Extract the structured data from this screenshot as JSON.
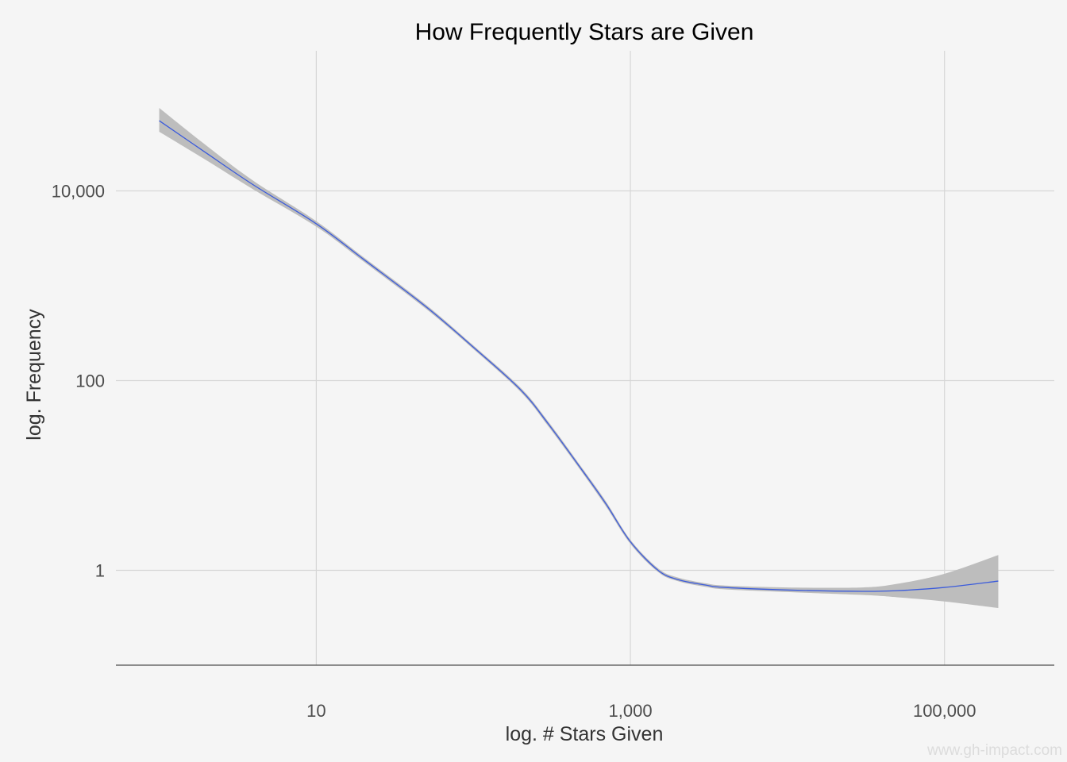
{
  "chart_data": {
    "type": "line",
    "title": "How Frequently Stars are Given",
    "xlabel": "log. # Stars Given",
    "ylabel": "log. Frequency",
    "x_scale": "log10",
    "y_scale": "log10",
    "xlim": [
      0.53,
      500000
    ],
    "ylim": [
      0.1,
      300000
    ],
    "x_ticks": [
      {
        "value": 10,
        "label": "10"
      },
      {
        "value": 1000,
        "label": "1,000"
      },
      {
        "value": 100000,
        "label": "100,000"
      }
    ],
    "y_ticks": [
      {
        "value": 1,
        "label": "1"
      },
      {
        "value": 100,
        "label": "100"
      },
      {
        "value": 10000,
        "label": "10,000"
      }
    ],
    "grid": true,
    "legend": "none",
    "series": [
      {
        "color": "#3b5bdb",
        "band_color": "#bdbdbd",
        "points": [
          {
            "x": 1,
            "y": 55000,
            "lo": 42000,
            "hi": 75000
          },
          {
            "x": 2,
            "y": 25000,
            "lo": 21000,
            "hi": 30000
          },
          {
            "x": 4,
            "y": 11500,
            "lo": 10300,
            "hi": 12700
          },
          {
            "x": 10,
            "y": 4500,
            "lo": 4200,
            "hi": 4800
          },
          {
            "x": 20,
            "y": 1900,
            "lo": 1800,
            "hi": 2000
          },
          {
            "x": 50,
            "y": 600,
            "lo": 570,
            "hi": 630
          },
          {
            "x": 100,
            "y": 225,
            "lo": 215,
            "hi": 235
          },
          {
            "x": 200,
            "y": 80,
            "lo": 76,
            "hi": 84
          },
          {
            "x": 300,
            "y": 35,
            "lo": 33,
            "hi": 37
          },
          {
            "x": 500,
            "y": 11,
            "lo": 10.4,
            "hi": 11.6
          },
          {
            "x": 700,
            "y": 5,
            "lo": 4.7,
            "hi": 5.3
          },
          {
            "x": 1000,
            "y": 2.0,
            "lo": 1.9,
            "hi": 2.1
          },
          {
            "x": 1500,
            "y": 1.0,
            "lo": 0.96,
            "hi": 1.05
          },
          {
            "x": 2000,
            "y": 0.8,
            "lo": 0.77,
            "hi": 0.84
          },
          {
            "x": 3000,
            "y": 0.7,
            "lo": 0.67,
            "hi": 0.73
          },
          {
            "x": 4000,
            "y": 0.66,
            "lo": 0.63,
            "hi": 0.69
          },
          {
            "x": 10000,
            "y": 0.62,
            "lo": 0.59,
            "hi": 0.66
          },
          {
            "x": 30000,
            "y": 0.6,
            "lo": 0.55,
            "hi": 0.66
          },
          {
            "x": 50000,
            "y": 0.61,
            "lo": 0.52,
            "hi": 0.72
          },
          {
            "x": 100000,
            "y": 0.66,
            "lo": 0.47,
            "hi": 0.92
          },
          {
            "x": 220000,
            "y": 0.77,
            "lo": 0.4,
            "hi": 1.45
          }
        ]
      }
    ],
    "watermark": "www.gh-impact.com"
  }
}
